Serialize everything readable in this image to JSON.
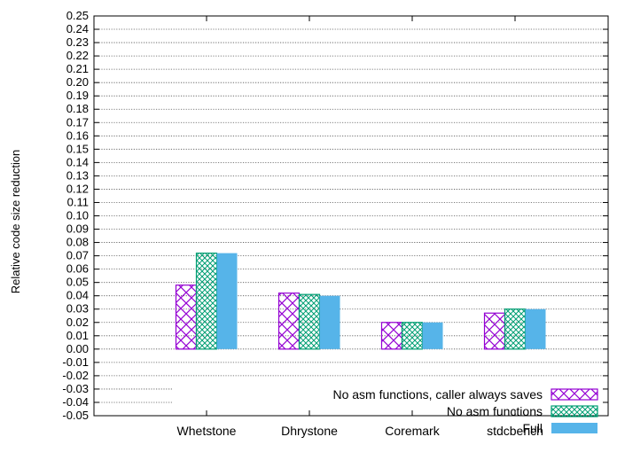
{
  "chart_data": {
    "type": "bar",
    "title": "",
    "xlabel": "",
    "ylabel": "Relative code size reduction",
    "ylim": [
      -0.05,
      0.25
    ],
    "ytick_step": 0.01,
    "grid": true,
    "legend_position": "bottom-right",
    "categories": [
      "Whetstone",
      "Dhrystone",
      "Coremark",
      "stdcbench"
    ],
    "series": [
      {
        "name": "No asm functions, caller always saves",
        "values": [
          0.048,
          0.042,
          0.02,
          0.027
        ],
        "color": "#9400d3",
        "fill": "crosshatch"
      },
      {
        "name": "No asm functions",
        "values": [
          0.072,
          0.041,
          0.02,
          0.03
        ],
        "color": "#009e73",
        "fill": "dense-crosshatch"
      },
      {
        "name": "Full",
        "values": [
          0.072,
          0.04,
          0.02,
          0.03
        ],
        "color": "#56b4e9",
        "fill": "solid"
      }
    ]
  }
}
